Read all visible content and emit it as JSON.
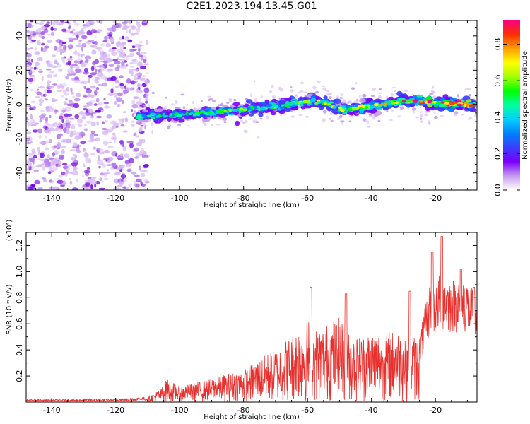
{
  "title": "C2E1.2023.194.13.45.G01",
  "chart_data": [
    {
      "type": "heatmap",
      "xlabel": "Height of straight line (km)",
      "ylabel": "Frequency (Hz)",
      "xlim": [
        -148,
        -7
      ],
      "ylim": [
        -50,
        49
      ],
      "xticks": [
        -140,
        -120,
        -100,
        -80,
        -60,
        -40,
        -20
      ],
      "yticks": [
        -40,
        -20,
        0,
        20,
        40
      ],
      "colorbar": {
        "label": "Normalized spectral amplitude",
        "range": [
          0,
          0.93
        ],
        "ticks": [
          "0.0",
          "0.2",
          "0.4",
          "0.6",
          "0.8"
        ],
        "colormap": [
          "#ffffff",
          "#c79bf0",
          "#7a00ff",
          "#3c3cff",
          "#0080ff",
          "#00d0ff",
          "#00ffa0",
          "#00ff00",
          "#a0ff00",
          "#ffff00",
          "#ffa000",
          "#ff3000",
          "#ff0080"
        ]
      },
      "ridge": [
        [
          -112,
          -7
        ],
        [
          -100,
          -6
        ],
        [
          -90,
          -5
        ],
        [
          -80,
          -3
        ],
        [
          -70,
          -1
        ],
        [
          -60,
          2
        ],
        [
          -55,
          1
        ],
        [
          -50,
          -3
        ],
        [
          -40,
          -1
        ],
        [
          -30,
          2
        ],
        [
          -20,
          1
        ],
        [
          -10,
          0
        ]
      ],
      "noise_region_x": [
        -148,
        -113
      ]
    },
    {
      "type": "line",
      "xlabel": "Height of straight line (km)",
      "ylabel": "SNR (10 * v/v)",
      "y_scale_label": "(x10⁴)",
      "xlim": [
        -148,
        -7
      ],
      "ylim": [
        0,
        1.3
      ],
      "xticks": [
        -140,
        -120,
        -100,
        -80,
        -60,
        -40,
        -20
      ],
      "yticks": [
        "0.2",
        "0.4",
        "0.6",
        "0.8",
        "1.0",
        "1.2"
      ],
      "color": "#e8312e",
      "envelope": [
        [
          -148,
          0.02
        ],
        [
          -120,
          0.025
        ],
        [
          -110,
          0.04
        ],
        [
          -106,
          0.1
        ],
        [
          -104,
          0.18
        ],
        [
          -100,
          0.12
        ],
        [
          -95,
          0.15
        ],
        [
          -90,
          0.18
        ],
        [
          -85,
          0.22
        ],
        [
          -80,
          0.25
        ],
        [
          -75,
          0.33
        ],
        [
          -70,
          0.42
        ],
        [
          -65,
          0.52
        ],
        [
          -62,
          0.6
        ],
        [
          -60,
          0.65
        ],
        [
          -57,
          0.55
        ],
        [
          -53,
          0.62
        ],
        [
          -50,
          0.65
        ],
        [
          -48,
          0.55
        ],
        [
          -45,
          0.5
        ],
        [
          -40,
          0.55
        ],
        [
          -35,
          0.55
        ],
        [
          -30,
          0.55
        ],
        [
          -28,
          0.52
        ],
        [
          -25,
          0.5
        ],
        [
          -22,
          0.9
        ],
        [
          -20,
          0.95
        ],
        [
          -18,
          1.0
        ],
        [
          -15,
          0.95
        ],
        [
          -12,
          0.97
        ],
        [
          -10,
          0.95
        ],
        [
          -8,
          0.85
        ]
      ],
      "peaks": [
        [
          -59,
          0.88
        ],
        [
          -48,
          0.83
        ],
        [
          -28,
          0.85
        ],
        [
          -21,
          1.15
        ],
        [
          -18,
          1.27
        ],
        [
          -12,
          1.02
        ],
        [
          -8,
          0.88
        ]
      ]
    }
  ]
}
